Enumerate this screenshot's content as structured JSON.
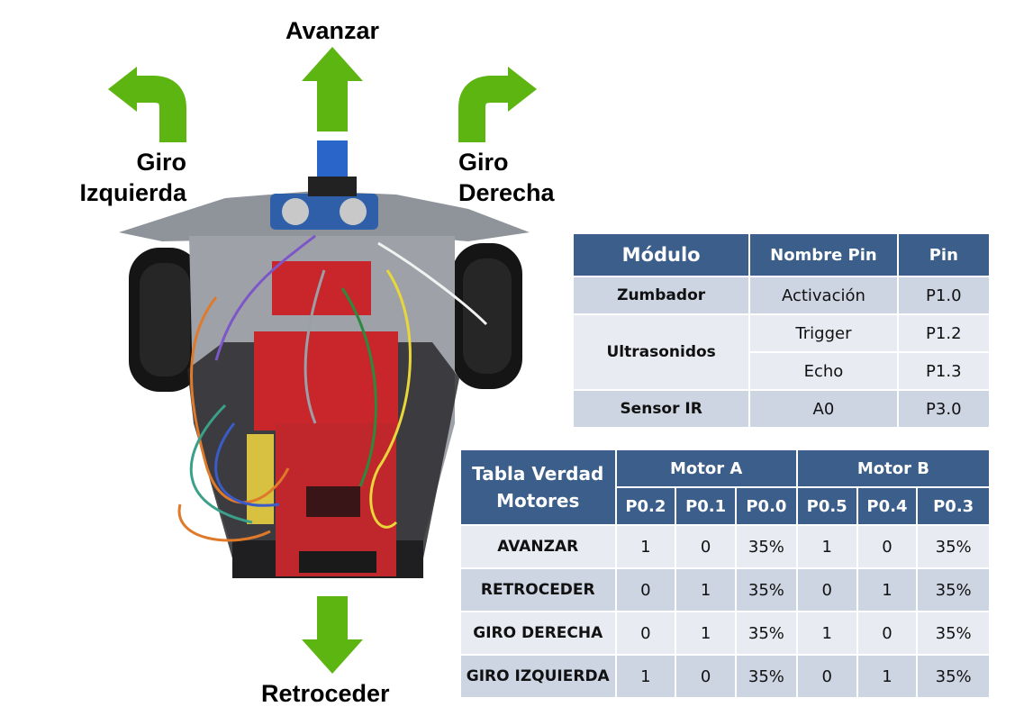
{
  "directions": {
    "forward": "Avanzar",
    "backward": "Retroceder",
    "left_line1": "Giro",
    "left_line2": "Izquierda",
    "right_line1": "Giro",
    "right_line2": "Derecha"
  },
  "colors": {
    "arrow": "#5cb510",
    "header_bg": "#3b5f8a",
    "row_odd": "#cdd5e3",
    "row_even": "#e8ebf2"
  },
  "pin_table": {
    "headers": [
      "Módulo",
      "Nombre Pin",
      "Pin"
    ],
    "zumbador": {
      "module": "Zumbador",
      "pin_name": "Activación",
      "pin": "P1.0"
    },
    "ultrasonidos": {
      "module": "Ultrasonidos",
      "trigger": {
        "pin_name": "Trigger",
        "pin": "P1.2"
      },
      "echo": {
        "pin_name": "Echo",
        "pin": "P1.3"
      }
    },
    "sensor_ir": {
      "module": "Sensor IR",
      "pin_name": "A0",
      "pin": "P3.0"
    }
  },
  "truth_table": {
    "title_line1": "Tabla Verdad",
    "title_line2": "Motores",
    "motor_a": "Motor A",
    "motor_b": "Motor B",
    "pins": [
      "P0.2",
      "P0.1",
      "P0.0",
      "P0.5",
      "P0.4",
      "P0.3"
    ],
    "rows": [
      {
        "label": "AVANZAR",
        "values": [
          "1",
          "0",
          "35%",
          "1",
          "0",
          "35%"
        ]
      },
      {
        "label": "RETROCEDER",
        "values": [
          "0",
          "1",
          "35%",
          "0",
          "1",
          "35%"
        ]
      },
      {
        "label": "GIRO DERECHA",
        "values": [
          "0",
          "1",
          "35%",
          "1",
          "0",
          "35%"
        ]
      },
      {
        "label": "GIRO IZQUIERDA",
        "values": [
          "1",
          "0",
          "35%",
          "0",
          "1",
          "35%"
        ]
      }
    ]
  }
}
